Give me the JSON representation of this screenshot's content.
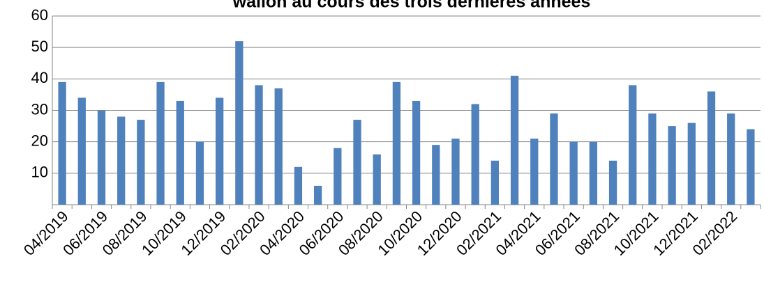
{
  "chart_data": {
    "type": "bar",
    "title": "wallon au cours des trois dernières années",
    "categories": [
      "04/2019",
      null,
      "06/2019",
      null,
      "08/2019",
      null,
      "10/2019",
      null,
      "12/2019",
      null,
      "02/2020",
      null,
      "04/2020",
      null,
      "06/2020",
      null,
      "08/2020",
      null,
      "10/2020",
      null,
      "12/2020",
      null,
      "02/2021",
      null,
      "04/2021",
      null,
      "06/2021",
      null,
      "08/2021",
      null,
      "10/2021",
      null,
      "12/2021",
      null,
      "02/2022",
      null
    ],
    "values": [
      39,
      34,
      30,
      28,
      27,
      39,
      33,
      20,
      34,
      52,
      38,
      37,
      12,
      6,
      18,
      27,
      16,
      39,
      33,
      19,
      21,
      32,
      14,
      41,
      21,
      29,
      20,
      20,
      14,
      38,
      29,
      25,
      26,
      36,
      29,
      24
    ],
    "color": "#4f81bd",
    "ylim": [
      0,
      60
    ],
    "yticks": [
      10,
      20,
      30,
      40,
      50,
      60
    ],
    "grid": true
  }
}
